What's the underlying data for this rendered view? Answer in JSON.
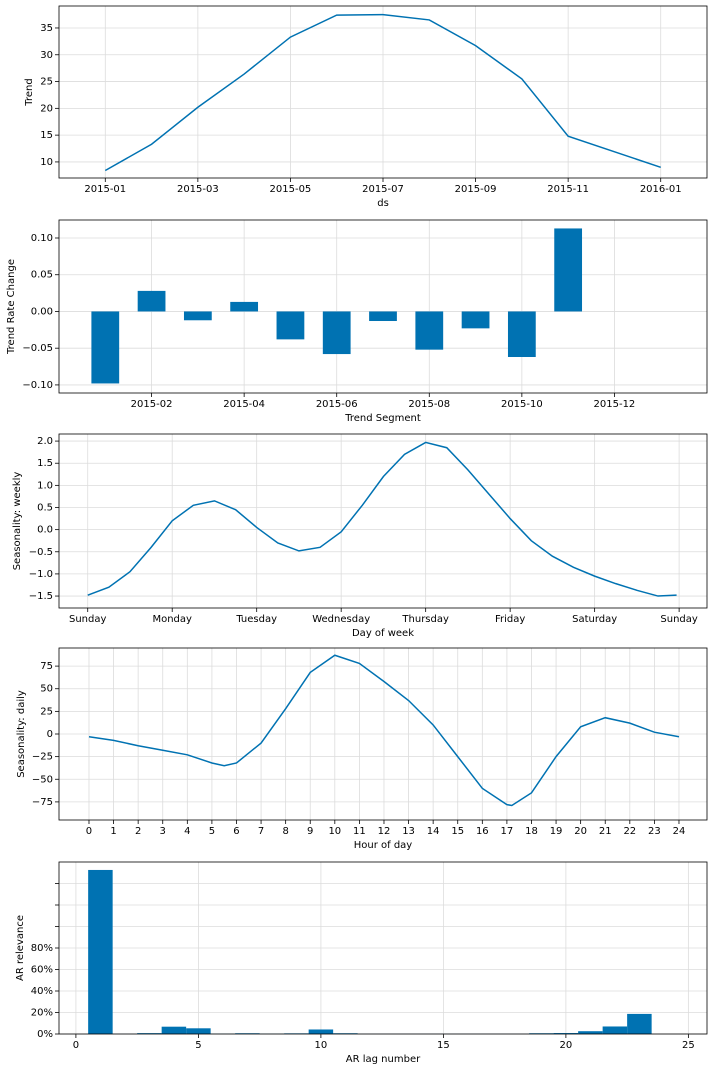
{
  "chart_data": [
    {
      "type": "line",
      "xlabel": "ds",
      "ylabel": "Trend",
      "color": "#0072b2",
      "grid": true,
      "x": [
        "2015-01",
        "2015-02",
        "2015-03",
        "2015-04",
        "2015-05",
        "2015-06",
        "2015-07",
        "2015-08",
        "2015-09",
        "2015-10",
        "2015-11",
        "2016-01"
      ],
      "values": [
        8.4,
        13.3,
        20.2,
        26.4,
        33.3,
        37.4,
        37.5,
        36.5,
        31.7,
        25.5,
        14.8,
        9.0
      ],
      "xlim": [
        "2014-12",
        "2016-02"
      ],
      "xticks": [
        "2015-01",
        "2015-03",
        "2015-05",
        "2015-07",
        "2015-09",
        "2015-11",
        "2016-01"
      ],
      "ylim": [
        7.0,
        39.1
      ],
      "yticks": [
        10,
        15,
        20,
        25,
        30,
        35
      ]
    },
    {
      "type": "bar",
      "xlabel": "Trend Segment",
      "ylabel": "Trend Rate Change",
      "color": "#0072b2",
      "grid": true,
      "x": [
        "2015-01",
        "2015-02",
        "2015-03",
        "2015-04",
        "2015-05",
        "2015-06",
        "2015-07",
        "2015-08",
        "2015-09",
        "2015-10",
        "2015-11"
      ],
      "values": [
        -0.098,
        0.028,
        -0.012,
        0.013,
        -0.038,
        -0.058,
        -0.013,
        -0.052,
        -0.023,
        -0.062,
        0.113
      ],
      "xlim": [
        "2014-12",
        "2016-02"
      ],
      "xticks": [
        "2015-02",
        "2015-04",
        "2015-06",
        "2015-08",
        "2015-10",
        "2015-12"
      ],
      "ylim": [
        -0.111,
        0.1245
      ],
      "yticks": [
        {
          "value": -0.1,
          "label": "−0.10"
        },
        {
          "value": -0.05,
          "label": "−0.05"
        },
        {
          "value": 0,
          "label": "0.00"
        },
        {
          "value": 0.05,
          "label": "0.05"
        },
        {
          "value": 0.1,
          "label": "0.10"
        }
      ]
    },
    {
      "type": "line",
      "xlabel": "Day of week",
      "ylabel": "Seasonality: weekly",
      "color": "#0072b2",
      "grid": true,
      "x": [
        0,
        0.25,
        0.5,
        0.75,
        1,
        1.25,
        1.5,
        1.75,
        2,
        2.25,
        2.5,
        2.75,
        3,
        3.25,
        3.5,
        3.75,
        4,
        4.25,
        4.5,
        4.75,
        5,
        5.25,
        5.5,
        5.75,
        6,
        6.25,
        6.5,
        6.75,
        6.97
      ],
      "values": [
        -1.48,
        -1.3,
        -0.95,
        -0.4,
        0.2,
        0.55,
        0.65,
        0.45,
        0.05,
        -0.3,
        -0.48,
        -0.4,
        -0.05,
        0.55,
        1.2,
        1.7,
        1.97,
        1.85,
        1.35,
        0.8,
        0.25,
        -0.25,
        -0.6,
        -0.85,
        -1.05,
        -1.22,
        -1.37,
        -1.5,
        -1.48
      ],
      "xlim": [
        -0.34,
        7.33
      ],
      "xticks": [
        {
          "value": 0,
          "label": "Sunday"
        },
        {
          "value": 1,
          "label": "Monday"
        },
        {
          "value": 2,
          "label": "Tuesday"
        },
        {
          "value": 3,
          "label": "Wednesday"
        },
        {
          "value": 4,
          "label": "Thursday"
        },
        {
          "value": 5,
          "label": "Friday"
        },
        {
          "value": 6,
          "label": "Saturday"
        },
        {
          "value": 7,
          "label": "Sunday"
        }
      ],
      "ylim": [
        -1.77,
        2.16
      ],
      "yticks": [
        {
          "value": -1.5,
          "label": "−1.5"
        },
        {
          "value": -1,
          "label": "−1.0"
        },
        {
          "value": -0.5,
          "label": "−0.5"
        },
        {
          "value": 0,
          "label": "0.0"
        },
        {
          "value": 0.5,
          "label": "0.5"
        },
        {
          "value": 1,
          "label": "1.0"
        },
        {
          "value": 1.5,
          "label": "1.5"
        },
        {
          "value": 2,
          "label": "2.0"
        }
      ]
    },
    {
      "type": "line",
      "xlabel": "Hour of day",
      "ylabel": "Seasonality: daily",
      "color": "#0072b2",
      "grid": true,
      "x": [
        0,
        1,
        2,
        3,
        4,
        5,
        5.5,
        6,
        7,
        8,
        9,
        10,
        11,
        12,
        13,
        14,
        15,
        16,
        17,
        17.2,
        18,
        19,
        20,
        21,
        22,
        23,
        24
      ],
      "values": [
        -3,
        -7,
        -13,
        -18,
        -23,
        -32,
        -35,
        -32,
        -10,
        28,
        68,
        87,
        78,
        58,
        37,
        10,
        -25,
        -60,
        -78,
        -79,
        -65,
        -25,
        8,
        18,
        12,
        2,
        -3
      ],
      "xlim": [
        -1.22,
        25.14
      ],
      "xticks": [
        0,
        1,
        2,
        3,
        4,
        5,
        6,
        7,
        8,
        9,
        10,
        11,
        12,
        13,
        14,
        15,
        16,
        17,
        18,
        19,
        20,
        21,
        22,
        23,
        24
      ],
      "ylim": [
        -95,
        95
      ],
      "yticks": [
        {
          "value": -75,
          "label": "−75"
        },
        {
          "value": -50,
          "label": "−50"
        },
        {
          "value": -25,
          "label": "−25"
        },
        0,
        25,
        50,
        75
      ]
    },
    {
      "type": "bar",
      "xlabel": "AR lag number",
      "ylabel": "AR relevance",
      "color": "#0072b2",
      "grid": true,
      "x": [
        1,
        2,
        3,
        4,
        5,
        6,
        7,
        8,
        9,
        10,
        11,
        12,
        13,
        14,
        15,
        16,
        17,
        18,
        19,
        20,
        21,
        22,
        23
      ],
      "values": [
        152.6,
        0.1,
        0.8,
        6.8,
        5.3,
        0.2,
        0.7,
        0.2,
        0.6,
        4.2,
        0.7,
        0.1,
        0.1,
        0.1,
        0.1,
        0.1,
        0.1,
        0.1,
        0.7,
        0.9,
        2.6,
        7.0,
        18.7
      ],
      "xlim": [
        -0.69,
        25.76
      ],
      "xticks": [
        0,
        5,
        10,
        15,
        20,
        25
      ],
      "ylim": [
        0,
        160
      ],
      "yticks": [
        {
          "value": 0,
          "label": "0%"
        },
        {
          "value": 20,
          "label": "20%"
        },
        {
          "value": 40,
          "label": "40%"
        },
        {
          "value": 60,
          "label": "60%"
        },
        {
          "value": 80,
          "label": "80%"
        },
        {
          "value": 100,
          "label": null
        },
        {
          "value": 120,
          "label": null
        },
        {
          "value": 140,
          "label": null
        }
      ]
    }
  ]
}
